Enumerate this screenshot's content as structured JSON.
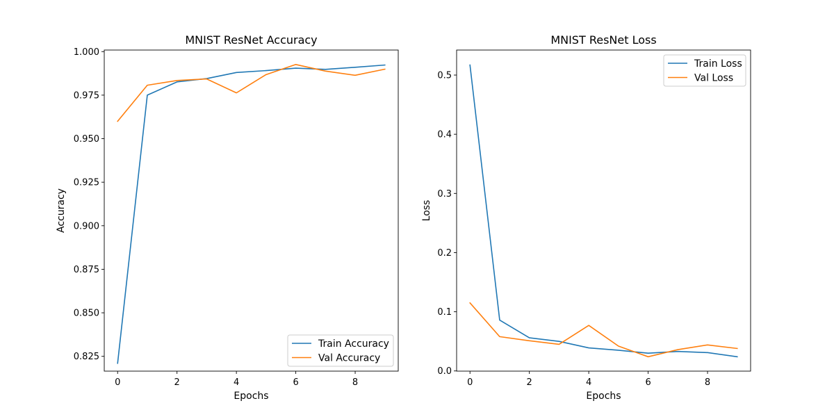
{
  "chart_data": [
    {
      "type": "line",
      "title": "MNIST ResNet Accuracy",
      "xlabel": "Epochs",
      "ylabel": "Accuracy",
      "xlim": [
        -0.45,
        9.45
      ],
      "ylim": [
        0.8165,
        1.0009
      ],
      "xticks": [
        0,
        2,
        4,
        6,
        8
      ],
      "xtick_labels": [
        "0",
        "2",
        "4",
        "6",
        "8"
      ],
      "yticks": [
        0.825,
        0.85,
        0.875,
        0.9,
        0.925,
        0.95,
        0.975,
        1.0
      ],
      "ytick_labels": [
        "0.825",
        "0.850",
        "0.875",
        "0.900",
        "0.925",
        "0.950",
        "0.975",
        "1.000"
      ],
      "grid": false,
      "legend": "lower-right",
      "x": [
        0,
        1,
        2,
        3,
        4,
        5,
        6,
        7,
        8,
        9
      ],
      "series": [
        {
          "name": "Train Accuracy",
          "color": "#1f77b4",
          "values": [
            0.821,
            0.975,
            0.9826,
            0.9845,
            0.988,
            0.9891,
            0.9905,
            0.9898,
            0.991,
            0.9923
          ]
        },
        {
          "name": "Val Accuracy",
          "color": "#ff7f0e",
          "values": [
            0.96,
            0.9807,
            0.9834,
            0.9843,
            0.9763,
            0.9868,
            0.9926,
            0.9888,
            0.9864,
            0.9899
          ]
        }
      ]
    },
    {
      "type": "line",
      "title": "MNIST ResNet Loss",
      "xlabel": "Epochs",
      "ylabel": "Loss",
      "xlim": [
        -0.45,
        9.45
      ],
      "ylim": [
        -0.0003,
        0.5423
      ],
      "xticks": [
        0,
        2,
        4,
        6,
        8
      ],
      "xtick_labels": [
        "0",
        "2",
        "4",
        "6",
        "8"
      ],
      "yticks": [
        0.0,
        0.1,
        0.2,
        0.3,
        0.4,
        0.5
      ],
      "ytick_labels": [
        "0.0",
        "0.1",
        "0.2",
        "0.3",
        "0.4",
        "0.5"
      ],
      "grid": false,
      "legend": "upper-right",
      "x": [
        0,
        1,
        2,
        3,
        4,
        5,
        6,
        7,
        8,
        9
      ],
      "series": [
        {
          "name": "Train Loss",
          "color": "#1f77b4",
          "values": [
            0.517,
            0.086,
            0.056,
            0.05,
            0.039,
            0.035,
            0.03,
            0.033,
            0.031,
            0.024
          ]
        },
        {
          "name": "Val Loss",
          "color": "#ff7f0e",
          "values": [
            0.115,
            0.058,
            0.051,
            0.045,
            0.077,
            0.042,
            0.024,
            0.036,
            0.044,
            0.038
          ]
        }
      ]
    }
  ]
}
